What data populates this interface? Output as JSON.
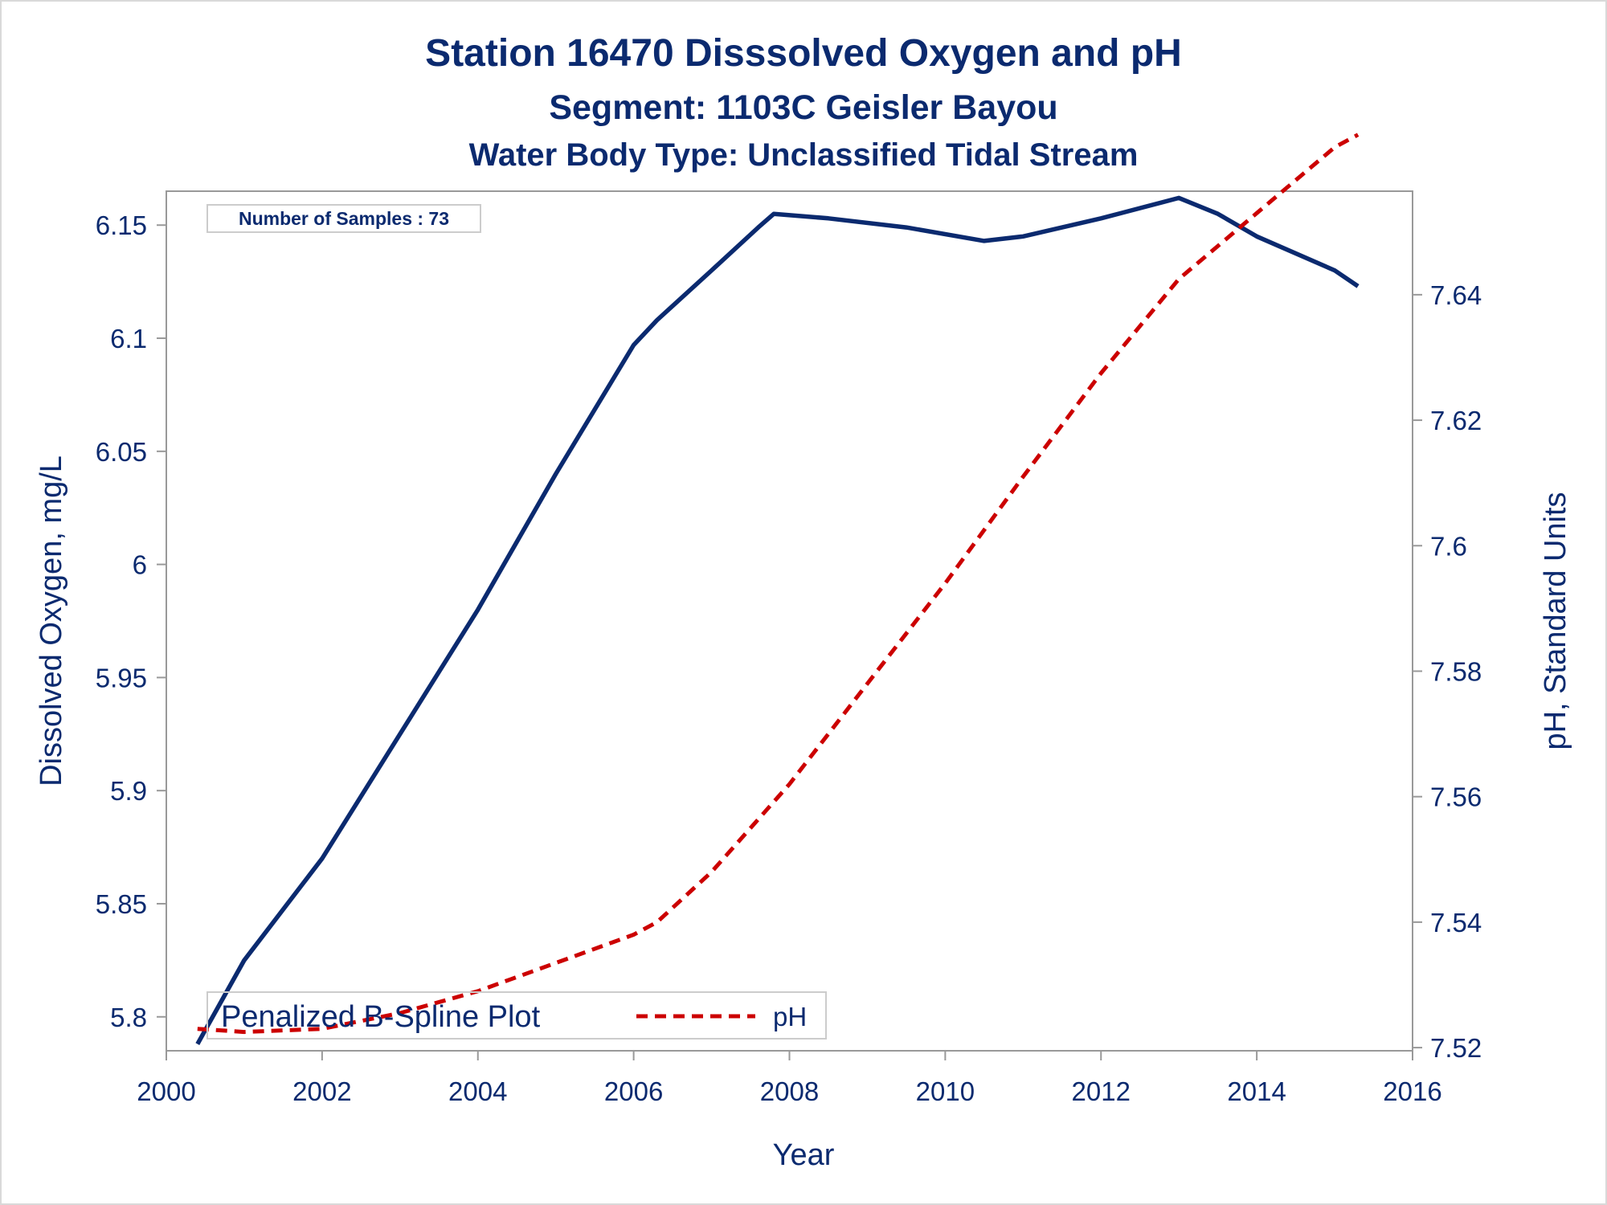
{
  "titles": {
    "line1": "Station 16470   Disssolved Oxygen and pH",
    "line2": "Segment: 1103C  Geisler Bayou",
    "line3": "Water Body Type: Unclassified Tidal Stream"
  },
  "inset": "Number of Samples : 73",
  "legend": {
    "title": "Penalized B-Spline Plot",
    "ph_label": "pH"
  },
  "colors": {
    "text": "#0b2a6f",
    "do_line": "#0b2a6f",
    "ph_line": "#cc0000",
    "frame": "#999999"
  },
  "chart_data": {
    "type": "line",
    "xlabel": "Year",
    "ylabel": "Dissolved Oxygen, mg/L",
    "y2label": "pH, Standard Units",
    "xlim": [
      2000,
      2016
    ],
    "ylim": [
      5.785,
      6.165
    ],
    "y2lim": [
      7.5195,
      7.6565
    ],
    "xticks": [
      "2000",
      "2002",
      "2004",
      "2006",
      "2008",
      "2010",
      "2012",
      "2014",
      "2016"
    ],
    "yticks": [
      "5.8",
      "5.85",
      "5.9",
      "5.95",
      "6",
      "6.05",
      "6.1",
      "6.15"
    ],
    "y2ticks": [
      "7.52",
      "7.54",
      "7.56",
      "7.58",
      "7.6",
      "7.62",
      "7.64"
    ],
    "grid": false,
    "legend_position": "bottom-left",
    "series": [
      {
        "axis": "left",
        "style": "solid",
        "x": [
          2000.4,
          2001.0,
          2002.0,
          2003.0,
          2004.0,
          2005.0,
          2006.0,
          2006.3,
          2007.0,
          2007.6,
          2007.8,
          2008.5,
          2009.5,
          2010.5,
          2011.0,
          2012.0,
          2013.0,
          2013.5,
          2014.0,
          2015.0,
          2015.3
        ],
        "y": [
          5.788,
          5.825,
          5.87,
          5.925,
          5.98,
          6.04,
          6.097,
          6.108,
          6.13,
          6.149,
          6.155,
          6.153,
          6.149,
          6.143,
          6.145,
          6.153,
          6.162,
          6.155,
          6.145,
          6.13,
          6.123
        ]
      },
      {
        "name": "pH",
        "axis": "right",
        "style": "dashed",
        "x": [
          2000.4,
          2001.0,
          2002.0,
          2003.0,
          2004.0,
          2005.0,
          2006.0,
          2006.3,
          2007.0,
          2008.0,
          2009.0,
          2010.0,
          2011.0,
          2012.0,
          2013.0,
          2014.0,
          2015.0,
          2015.3
        ],
        "y": [
          7.523,
          7.5225,
          7.523,
          7.5255,
          7.529,
          7.5335,
          7.538,
          7.54,
          7.548,
          7.562,
          7.578,
          7.594,
          7.611,
          7.6275,
          7.6425,
          7.653,
          7.6635,
          7.6655
        ]
      }
    ]
  }
}
